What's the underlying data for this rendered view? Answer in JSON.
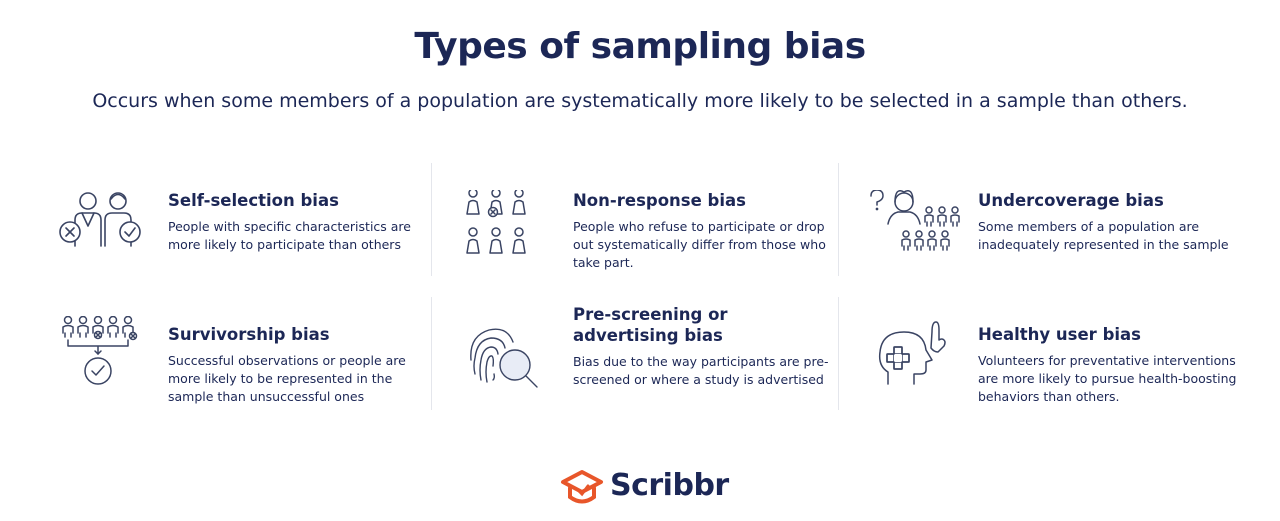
{
  "header": {
    "title": "Types of sampling bias",
    "subtitle": "Occurs when some members of a population are systematically more likely to be selected in a sample than others."
  },
  "colors": {
    "navy": "#1c2756",
    "icon_stroke": "#3a4463",
    "accent": "#e8562a",
    "divider": "#e4e6ec"
  },
  "cards": [
    {
      "title": "Self-selection bias",
      "description": "People with specific characteristics are more likely to participate than others",
      "icon": "self-selection-icon"
    },
    {
      "title": "Non-response bias",
      "description": "People who refuse to participate or drop out systematically differ from those who take part.",
      "icon": "non-response-icon"
    },
    {
      "title": "Undercoverage bias",
      "description": "Some members of a population are inadequately represented in the sample",
      "icon": "undercoverage-icon"
    },
    {
      "title": "Survivorship bias",
      "description": "Successful observations or people are more likely to be represented in the sample than unsuccessful ones",
      "icon": "survivorship-icon"
    },
    {
      "title": "Pre-screening or advertising bias",
      "description": "Bias due to the way participants are pre-screened or where a study is advertised",
      "icon": "fingerprint-magnifier-icon"
    },
    {
      "title": "Healthy user bias",
      "description": "Volunteers for preventative interventions are more likely to pursue health-boosting behaviors than others.",
      "icon": "healthy-head-icon"
    }
  ],
  "footer": {
    "brand": "Scribbr",
    "logo_icon": "graduation-cap-icon"
  }
}
